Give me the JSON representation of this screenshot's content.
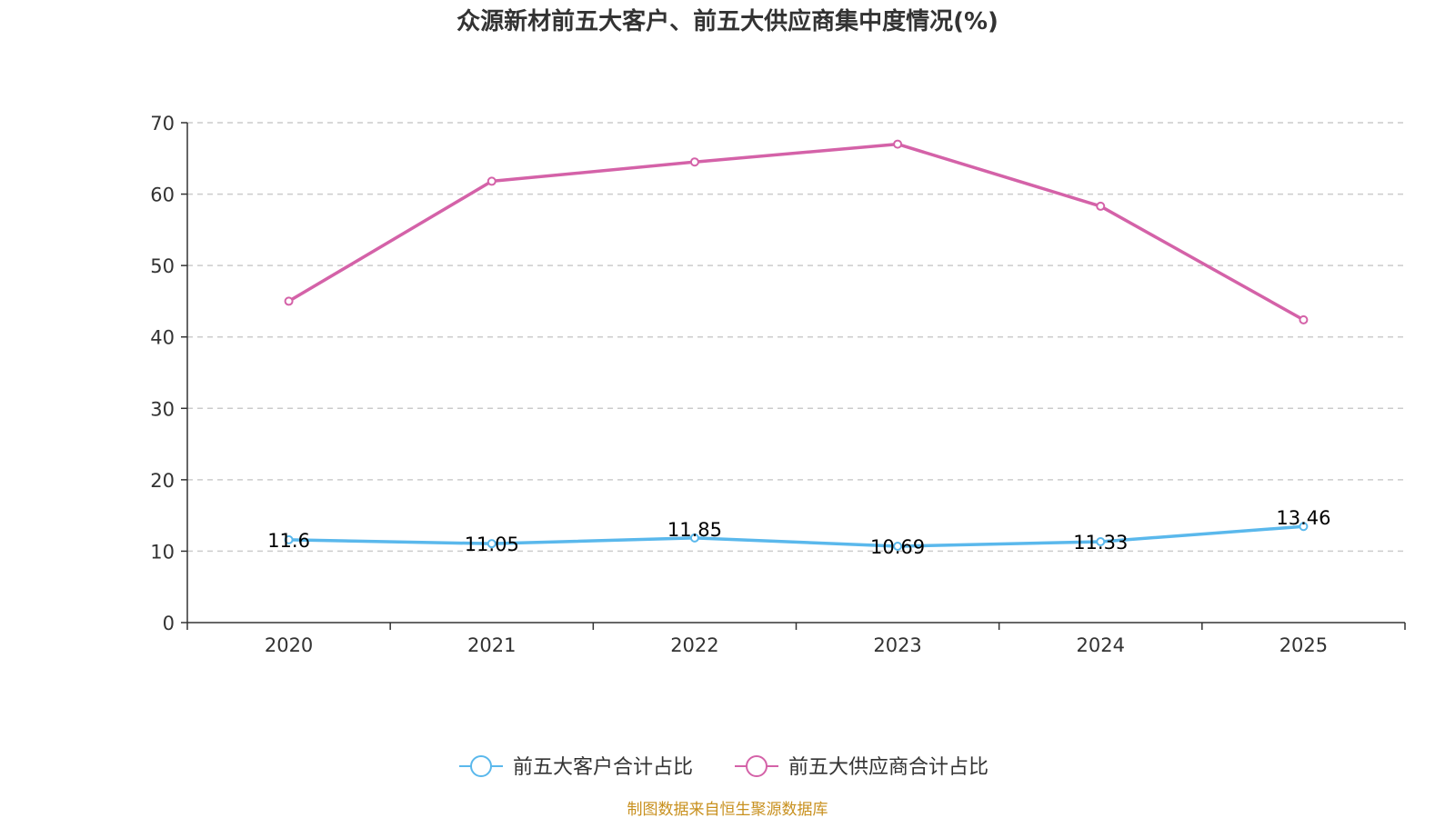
{
  "chart_data": {
    "type": "line",
    "title": "众源新材前五大客户、前五大供应商集中度情况(%)",
    "categories": [
      "2020",
      "2021",
      "2022",
      "2023",
      "2024",
      "2025"
    ],
    "y_ticks": [
      "0",
      "10",
      "20",
      "30",
      "40",
      "50",
      "60",
      "70"
    ],
    "ylim": [
      0,
      70
    ],
    "grid": true,
    "legend_position": "bottom",
    "series": [
      {
        "name": "前五大客户合计占比",
        "color": "#5ab8ec",
        "values": [
          11.6,
          11.05,
          11.85,
          10.69,
          11.33,
          13.46
        ],
        "value_labels": [
          "11.6",
          "11.05",
          "11.85",
          "10.69",
          "11.33",
          "13.46"
        ],
        "show_labels": true
      },
      {
        "name": "前五大供应商合计占比",
        "color": "#d462a8",
        "values": [
          45.0,
          61.8,
          64.5,
          67.0,
          58.3,
          42.4
        ],
        "show_labels": false
      }
    ],
    "source": "制图数据来自恒生聚源数据库",
    "source_color": "#c8901e"
  }
}
